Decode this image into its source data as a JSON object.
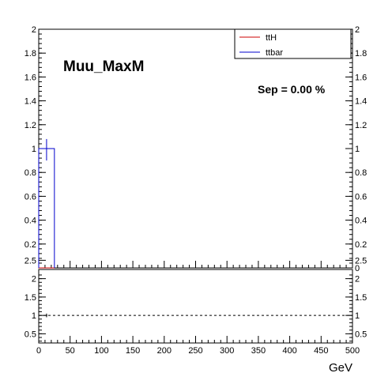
{
  "chart_data": [
    {
      "type": "line",
      "title": "Muu_MaxM",
      "annotation": "Sep = 0.00 %",
      "xlim": [
        0,
        500
      ],
      "ylim": [
        0,
        2
      ],
      "y_ticks": [
        "0.2",
        "0.4",
        "0.6",
        "0.8",
        "1",
        "1.2",
        "1.4",
        "1.6",
        "1.8",
        "2"
      ],
      "y_tick_values": [
        0.2,
        0.4,
        0.6,
        0.8,
        1,
        1.2,
        1.4,
        1.6,
        1.8,
        2
      ],
      "right_axis_ticks": [
        "0",
        "0.2",
        "0.4",
        "0.6",
        "0.8",
        "1",
        "1.2",
        "1.4",
        "1.6",
        "1.8",
        "2"
      ],
      "right_axis_tick_values": [
        0,
        0.2,
        0.4,
        0.6,
        0.8,
        1,
        1.2,
        1.4,
        1.6,
        1.8,
        2
      ],
      "legend": {
        "placement": "top-right",
        "entries": [
          "ttH",
          "ttbar"
        ]
      },
      "series": [
        {
          "name": "ttH",
          "color": "#cc0000",
          "bins": [
            [
              0,
              25,
              0
            ]
          ]
        },
        {
          "name": "ttbar",
          "color": "#0000cc",
          "bins": [
            [
              0,
              25,
              1
            ]
          ],
          "error_x": 12.5,
          "error_low": 0.9,
          "error_high": 1.08
        }
      ]
    },
    {
      "type": "line",
      "xlabel": "GeV",
      "xlim": [
        0,
        500
      ],
      "ylim": [
        0.25,
        2.25
      ],
      "x_ticks": [
        "0",
        "50",
        "100",
        "150",
        "200",
        "250",
        "300",
        "350",
        "400",
        "450",
        "500"
      ],
      "x_tick_values": [
        0,
        50,
        100,
        150,
        200,
        250,
        300,
        350,
        400,
        450,
        500
      ],
      "y_ticks": [
        "0.5",
        "1",
        "1.5",
        "2",
        "2.5"
      ],
      "y_tick_values": [
        0.5,
        1,
        1.5,
        2,
        2.5
      ],
      "right_axis_ticks": [
        "0.5",
        "1",
        "1.5",
        "2",
        "2.5"
      ],
      "right_axis_tick_values": [
        0.5,
        1,
        1.5,
        2,
        2.5
      ],
      "reference_line": 1,
      "points": [
        {
          "x": 12.5,
          "y": 1,
          "error_low": 0.95,
          "error_high": 1.05
        }
      ]
    }
  ]
}
